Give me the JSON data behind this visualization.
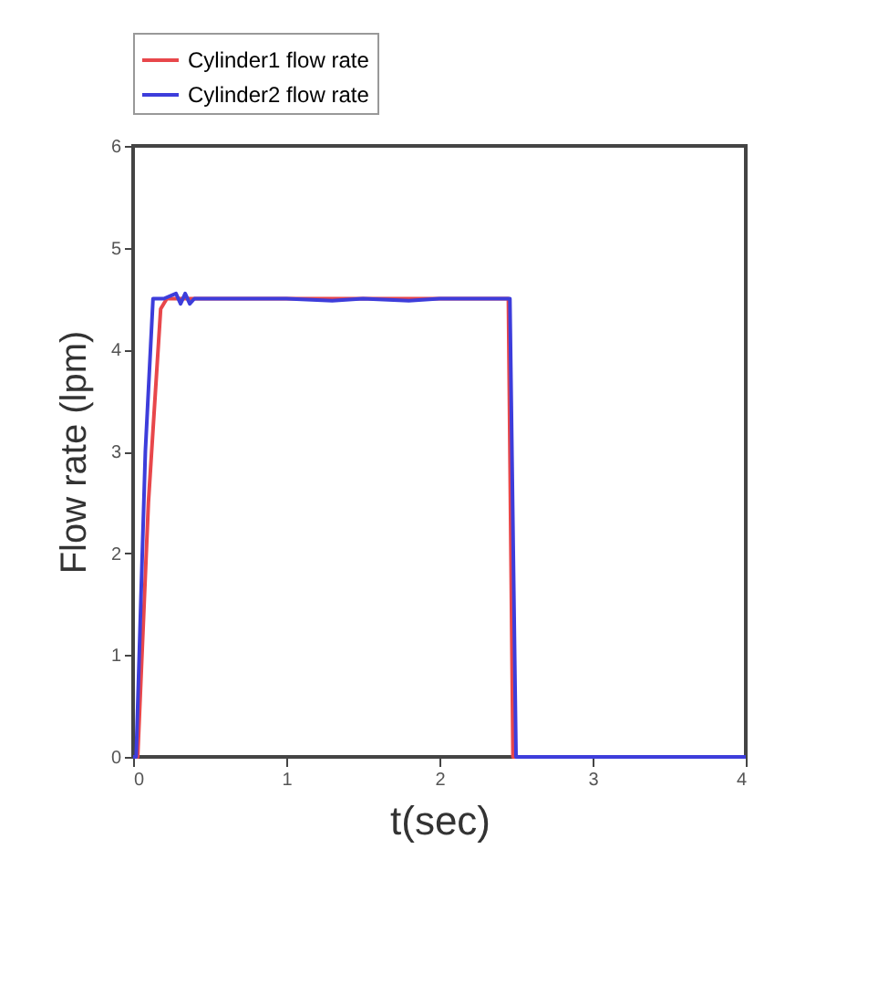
{
  "chart_data": {
    "type": "line",
    "xlabel": "t(sec)",
    "ylabel": "Flow rate (lpm)",
    "xlim": [
      0,
      4
    ],
    "xticks": [
      0,
      1,
      2,
      3,
      4
    ],
    "ylim": [
      0,
      6
    ],
    "yticks": [
      0,
      1,
      2,
      3,
      4,
      5,
      6
    ],
    "grid": false,
    "legend": "top",
    "series": [
      {
        "name": "Cylinder1 flow rate",
        "color": "#e8474b",
        "x": [
          0,
          0.03,
          0.1,
          0.18,
          0.22,
          2.45,
          2.48,
          4
        ],
        "values": [
          0,
          0,
          2.5,
          4.4,
          4.5,
          4.5,
          0,
          0
        ]
      },
      {
        "name": "Cylinder2 flow rate",
        "color": "#3d3ddb",
        "x": [
          0,
          0.02,
          0.08,
          0.13,
          0.2,
          0.28,
          0.31,
          0.34,
          0.37,
          0.4,
          0.5,
          0.7,
          1.0,
          1.3,
          1.5,
          1.8,
          2.0,
          2.3,
          2.46,
          2.5,
          4
        ],
        "values": [
          0,
          0,
          3.0,
          4.5,
          4.5,
          4.55,
          4.45,
          4.55,
          4.45,
          4.5,
          4.5,
          4.5,
          4.5,
          4.48,
          4.5,
          4.48,
          4.5,
          4.5,
          4.5,
          0,
          0
        ]
      }
    ]
  }
}
